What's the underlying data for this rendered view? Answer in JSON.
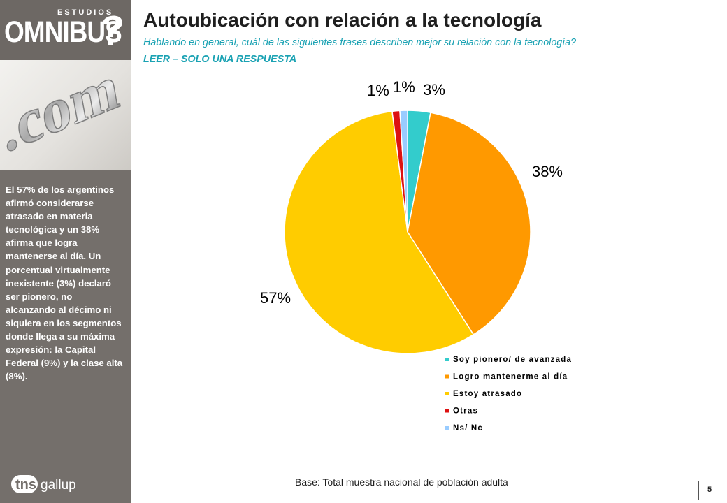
{
  "brand": {
    "small": "ESTUDIOS",
    "big": "OMNIBUS"
  },
  "photo": {
    "text": ".com"
  },
  "sidebar": {
    "summary": "El 57% de los argentinos afirmó considerarse atrasado en materia tecnológica y un 38% afirma que logra mantenerse al día. Un porcentual virtualmente inexistente (3%) declaró ser pionero, no alcanzando al décimo ni siquiera en los segmentos donde llega a su máxima expresión: la Capital Federal (9%) y la clase alta (8%).",
    "logo_left": "tns",
    "logo_right": "gallup"
  },
  "header": {
    "title": "Autoubicación con relación a la tecnología",
    "subtitle": "Hablando en general, cuál de las siguientes frases describen mejor su relación con la tecnología?",
    "instruction": "LEER – SOLO UNA RESPUESTA"
  },
  "chart_data": {
    "type": "pie",
    "title": "",
    "categories": [
      "Soy pionero/ de avanzada",
      "Logro mantenerme al día",
      "Estoy atrasado",
      "Otras",
      "Ns/ Nc"
    ],
    "values": [
      3,
      38,
      57,
      1,
      1
    ],
    "labels": [
      "3%",
      "38%",
      "57%",
      "1%",
      "1%"
    ],
    "colors": [
      "#33cccc",
      "#ff9900",
      "#ffcc00",
      "#dd1111",
      "#99ccff"
    ],
    "start": "12 o'clock",
    "direction": "clockwise",
    "legend_position": "bottom-right"
  },
  "footer": {
    "base": "Base: Total muestra nacional de población adulta",
    "page": "5"
  }
}
